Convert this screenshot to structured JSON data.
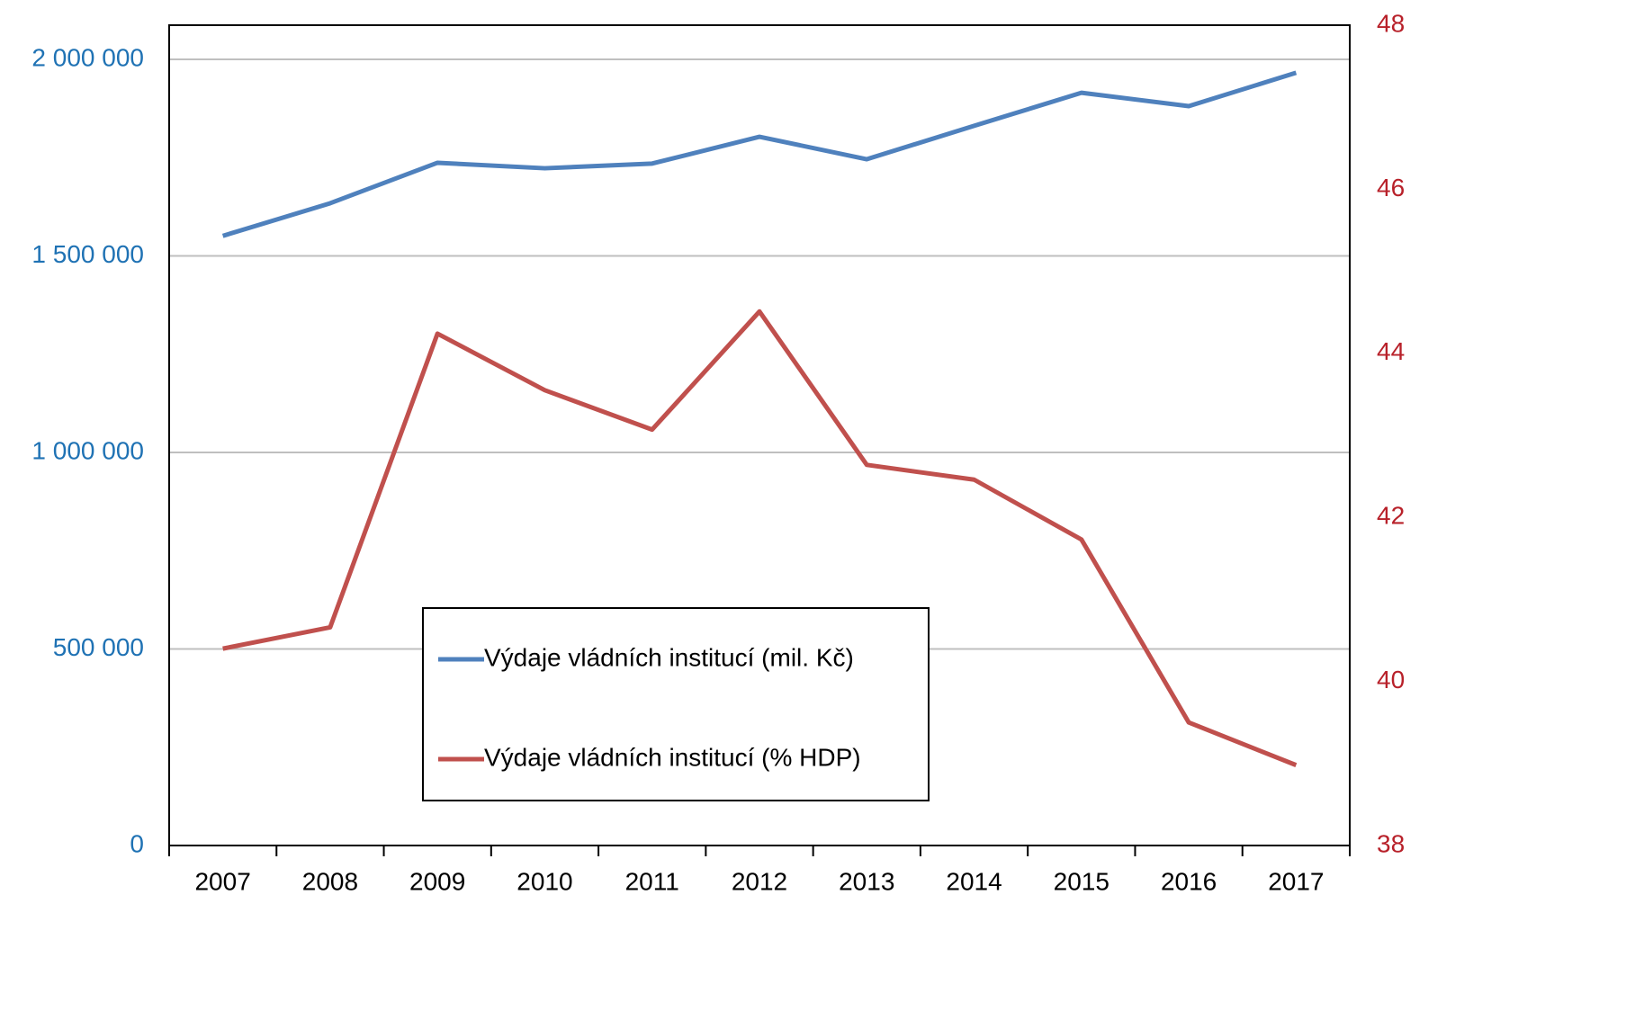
{
  "chart_data": {
    "type": "line",
    "categories": [
      "2007",
      "2008",
      "2009",
      "2010",
      "2011",
      "2012",
      "2013",
      "2014",
      "2015",
      "2016",
      "2017"
    ],
    "series": [
      {
        "name": "Výdaje vládních institucí (mil. Kč)",
        "color": "#4f81bd",
        "axis": "y",
        "values": [
          1551000,
          1634000,
          1737000,
          1723000,
          1735000,
          1803000,
          1746000,
          1831000,
          1915000,
          1881000,
          1966000
        ]
      },
      {
        "name": "Výdaje vládních institucí (% HDP)",
        "color": "#c0504d",
        "axis": "y2",
        "values": [
          40.4,
          40.66,
          44.24,
          43.55,
          43.07,
          44.51,
          42.64,
          42.46,
          41.73,
          39.5,
          38.98
        ]
      }
    ],
    "ylim": [
      0,
      2087000
    ],
    "yticks": [
      0,
      {
        "value": 500000,
        "label": "500 000"
      },
      {
        "value": 1000000,
        "label": "1 000 000"
      },
      {
        "value": 1500000,
        "label": "1 500 000"
      },
      {
        "value": 2000000,
        "label": "2 000 000"
      }
    ],
    "y2lim": [
      38,
      48
    ],
    "y2ticks": [
      38,
      40,
      42,
      44,
      46,
      48
    ],
    "grid": true,
    "y_color": "#1f72b4",
    "y2_color": "#b8212a"
  }
}
